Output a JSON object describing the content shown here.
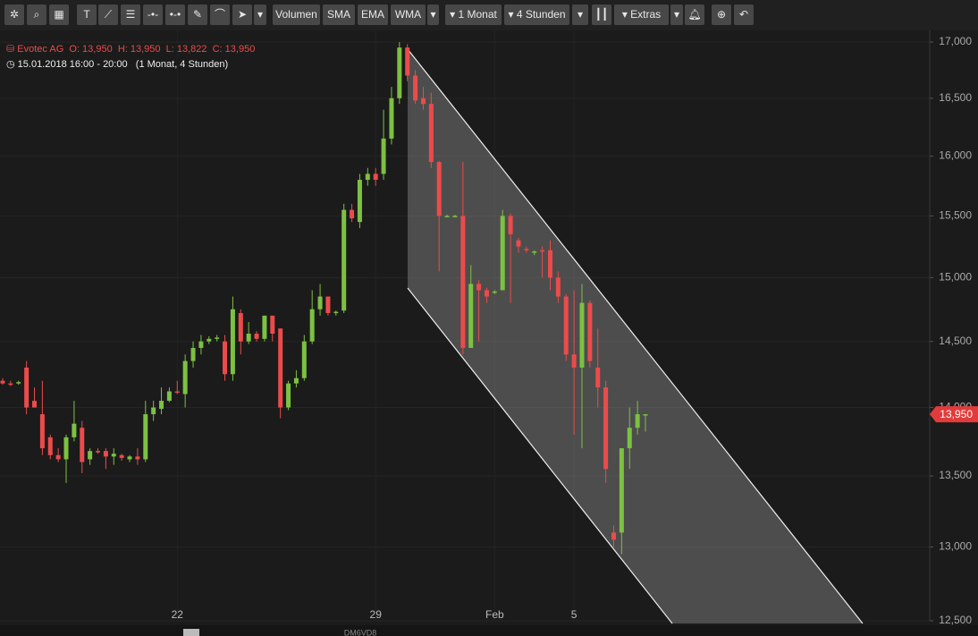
{
  "toolbar": {
    "buttons": [
      "Volumen",
      "SMA",
      "EMA",
      "WMA",
      "1 Monat",
      "4 Stunden",
      "Extras"
    ]
  },
  "header": {
    "symbol": "Evotec AG",
    "ohlc": "O: 13,950  H: 13,950  L: 13,822  C: 13,950",
    "time": "15.01.2018 16:00 - 20:00",
    "period": "(1 Monat, 4 Stunden)"
  },
  "footer": {
    "code": "DM6VD8"
  },
  "chart_data": {
    "type": "candlestick",
    "log_scale": true,
    "grid": true,
    "up_color": "#7cc142",
    "down_color": "#ec4b4b",
    "price_marker": "13,950",
    "categories": [
      null,
      null,
      null,
      null,
      null,
      null,
      null,
      null,
      null,
      null,
      null,
      null,
      null,
      null,
      null,
      null,
      null,
      null,
      null,
      null,
      null,
      null,
      "22",
      null,
      null,
      null,
      null,
      null,
      null,
      null,
      null,
      null,
      null,
      null,
      null,
      null,
      null,
      null,
      null,
      null,
      null,
      null,
      null,
      null,
      null,
      null,
      null,
      "29",
      null,
      null,
      null,
      null,
      null,
      null,
      null,
      null,
      null,
      null,
      null,
      null,
      null,
      null,
      "Feb",
      null,
      null,
      null,
      null,
      null,
      null,
      null,
      null,
      null,
      "5",
      null,
      null,
      null,
      null,
      null,
      null,
      null,
      null,
      null
    ],
    "open": [
      14200,
      14180,
      14180,
      14300,
      14050,
      13950,
      13780,
      13650,
      13620,
      13780,
      13850,
      13620,
      13680,
      13680,
      13640,
      13650,
      13620,
      13640,
      13620,
      13950,
      13990,
      14050,
      14120,
      14100,
      14350,
      14450,
      14500,
      14520,
      14500,
      14250,
      14720,
      14500,
      14560,
      14520,
      14700,
      14600,
      14000,
      14180,
      14220,
      14500,
      14750,
      14850,
      14720,
      14740,
      15550,
      15450,
      15800,
      15850,
      15850,
      16150,
      16500,
      16950,
      16700,
      16500,
      16450,
      15950,
      15500,
      15500,
      15500,
      14450,
      14950,
      14900,
      14880,
      14900,
      15500,
      15300,
      15230,
      15200,
      15220,
      15220,
      15000,
      14850,
      14400,
      14300,
      14800,
      14300,
      14150,
      13100,
      13100,
      13700,
      13850,
      13950
    ],
    "high": [
      14220,
      14200,
      14200,
      14350,
      14150,
      14200,
      13800,
      13700,
      13800,
      14050,
      13900,
      13700,
      13700,
      13700,
      13700,
      13660,
      13650,
      13700,
      14050,
      14050,
      14150,
      14150,
      14200,
      14400,
      14500,
      14550,
      14540,
      14550,
      14550,
      14850,
      14750,
      14650,
      14580,
      14700,
      14700,
      14600,
      14200,
      14280,
      14550,
      14900,
      14950,
      14850,
      14740,
      15600,
      15600,
      15850,
      15900,
      15900,
      16400,
      16600,
      17000,
      16980,
      16750,
      16600,
      16550,
      15960,
      15510,
      15510,
      15950,
      15100,
      14980,
      14920,
      14900,
      15550,
      15520,
      15320,
      15250,
      15220,
      15250,
      15300,
      15050,
      14870,
      14900,
      14950,
      14820,
      14600,
      14200,
      13150,
      13700,
      14000,
      14050,
      13950
    ],
    "low": [
      14170,
      14160,
      14170,
      13950,
      14000,
      13650,
      13620,
      13600,
      13450,
      13750,
      13520,
      13580,
      13660,
      13550,
      13580,
      13610,
      13600,
      13580,
      13600,
      13900,
      13950,
      14040,
      14100,
      14000,
      14300,
      14400,
      14480,
      14500,
      14200,
      14200,
      14400,
      14480,
      14500,
      14500,
      14500,
      13920,
      13980,
      14150,
      14200,
      14480,
      14700,
      14700,
      14700,
      14720,
      15450,
      15400,
      15750,
      15750,
      15800,
      16100,
      16450,
      16650,
      16450,
      16400,
      15900,
      15050,
      15490,
      15490,
      14400,
      14450,
      14500,
      14800,
      14870,
      14900,
      14800,
      15200,
      15200,
      15180,
      15000,
      14900,
      14800,
      14350,
      13800,
      13700,
      14300,
      14000,
      13450,
      13000,
      12950,
      13550,
      13800,
      13822
    ],
    "close": [
      14180,
      14170,
      14190,
      14000,
      14000,
      13700,
      13650,
      13620,
      13780,
      13880,
      13600,
      13680,
      13670,
      13640,
      13660,
      13630,
      13640,
      13620,
      13950,
      14000,
      14050,
      14120,
      14110,
      14350,
      14450,
      14500,
      14520,
      14530,
      14250,
      14750,
      14500,
      14560,
      14520,
      14700,
      14560,
      14000,
      14180,
      14220,
      14500,
      14750,
      14850,
      14720,
      14730,
      15550,
      15480,
      15800,
      15850,
      15800,
      16150,
      16500,
      16950,
      16700,
      16480,
      16450,
      15950,
      15500,
      15500,
      15500,
      14450,
      14950,
      14900,
      14850,
      14890,
      15500,
      15350,
      15250,
      15220,
      15210,
      15210,
      15000,
      14850,
      14400,
      14300,
      14800,
      14350,
      14150,
      13550,
      13050,
      13700,
      13850,
      13950,
      13950
    ],
    "ylim": [
      12500,
      17000
    ],
    "yticks": [
      {
        "value": 12500,
        "label": "12,500"
      },
      {
        "value": 13000,
        "label": "13,000"
      },
      {
        "value": 13500,
        "label": "13,500"
      },
      {
        "value": 14000,
        "label": "14,000"
      },
      {
        "value": 14500,
        "label": "14,500"
      },
      {
        "value": 15000,
        "label": "15,000"
      },
      {
        "value": 15500,
        "label": "15,500"
      },
      {
        "value": 16000,
        "label": "16,000"
      },
      {
        "value": 16500,
        "label": "16,500"
      },
      {
        "value": 17000,
        "label": "17,000"
      }
    ]
  }
}
